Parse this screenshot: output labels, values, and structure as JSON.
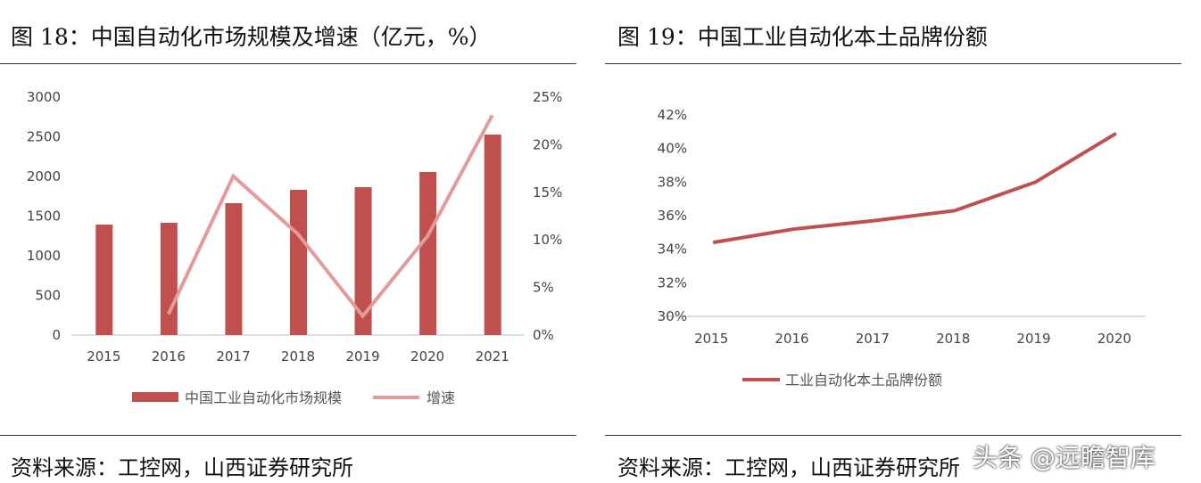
{
  "chart_data": [
    {
      "type": "bar+line",
      "title": "图 18：中国自动化市场规模及增速（亿元，%）",
      "categories": [
        "2015",
        "2016",
        "2017",
        "2018",
        "2019",
        "2020",
        "2021"
      ],
      "series": [
        {
          "name": "中国工业自动化市场规模",
          "type": "bar",
          "axis": "left",
          "color": "#C0504D",
          "values": [
            1393,
            1416,
            1663,
            1831,
            1865,
            2056,
            2528
          ]
        },
        {
          "name": "增速",
          "type": "line",
          "axis": "right",
          "color": "#E39A9A",
          "values": [
            null,
            2.2,
            16.7,
            10.6,
            2.0,
            10.4,
            23.1
          ]
        }
      ],
      "ylim": [
        0,
        3000
      ],
      "yticks": [
        "0",
        "500",
        "1000",
        "1500",
        "2000",
        "2500",
        "3000"
      ],
      "y2lim": [
        0,
        25
      ],
      "y2ticks": [
        "0%",
        "5%",
        "10%",
        "15%",
        "20%",
        "25%"
      ],
      "legend": "bottom",
      "grid": false,
      "source": "资料来源：工控网，山西证券研究所"
    },
    {
      "type": "line",
      "title": "图 19：中国工业自动化本土品牌份额",
      "categories": [
        "2015",
        "2016",
        "2017",
        "2018",
        "2019",
        "2020"
      ],
      "series": [
        {
          "name": "工业自动化本土品牌份额",
          "color": "#C0504D",
          "values": [
            34.4,
            35.2,
            35.7,
            36.3,
            38.0,
            40.9
          ]
        }
      ],
      "ylim": [
        30,
        42
      ],
      "yticks": [
        "30%",
        "32%",
        "34%",
        "36%",
        "38%",
        "40%",
        "42%"
      ],
      "legend": "bottom",
      "grid": false,
      "source": "资料来源：工控网，山西证券研究所"
    }
  ],
  "watermark": "头条 @远瞻智库"
}
